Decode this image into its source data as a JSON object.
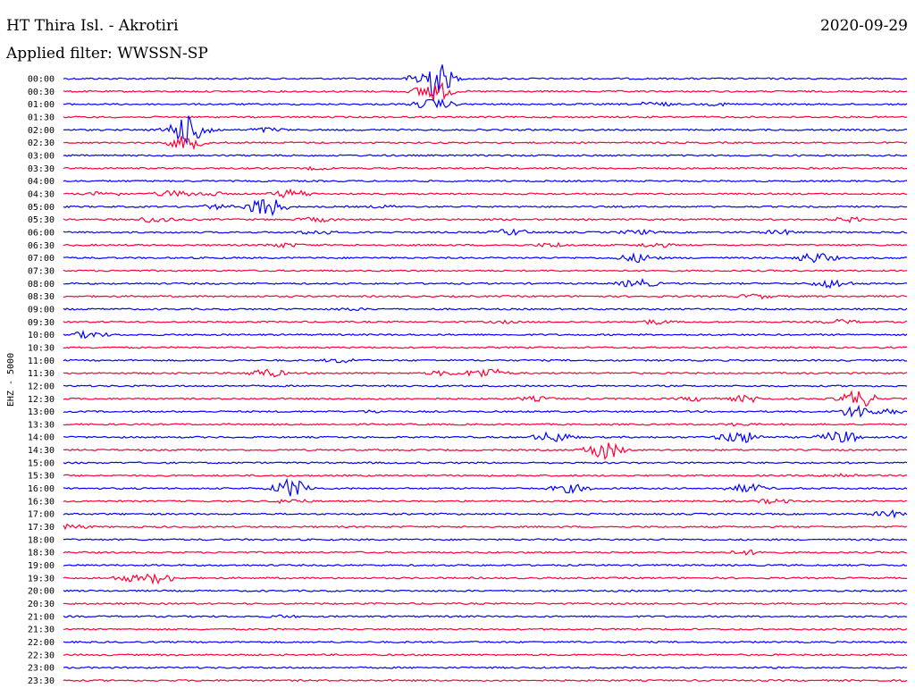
{
  "header": {
    "station": "HT Thira Isl. - Akrotiri",
    "date": "2020-09-29",
    "filter": "Applied filter: WWSSN-SP"
  },
  "chart_data": {
    "type": "line",
    "title": "HT Thira Isl. - Akrotiri",
    "channel_label": "EHZ - 5000",
    "colors": [
      "#0000ff",
      "#ff0033"
    ],
    "traces": [
      {
        "time": "00:00",
        "events": [
          {
            "t": 0.438,
            "a": 22
          }
        ]
      },
      {
        "time": "00:30",
        "events": [
          {
            "t": 0.438,
            "a": 12
          }
        ]
      },
      {
        "time": "01:00",
        "events": [
          {
            "t": 0.438,
            "a": 6
          },
          {
            "t": 0.7,
            "a": 3
          },
          {
            "t": 0.78,
            "a": 2
          }
        ]
      },
      {
        "time": "01:30",
        "events": []
      },
      {
        "time": "02:00",
        "events": [
          {
            "t": 0.145,
            "a": 16
          },
          {
            "t": 0.155,
            "a": 12
          },
          {
            "t": 0.24,
            "a": 3
          }
        ]
      },
      {
        "time": "02:30",
        "events": [
          {
            "t": 0.145,
            "a": 8
          }
        ]
      },
      {
        "time": "03:00",
        "events": []
      },
      {
        "time": "03:30",
        "events": [
          {
            "t": 0.3,
            "a": 2
          }
        ]
      },
      {
        "time": "04:00",
        "events": []
      },
      {
        "time": "04:30",
        "events": [
          {
            "t": 0.05,
            "a": 3
          },
          {
            "t": 0.13,
            "a": 4
          },
          {
            "t": 0.17,
            "a": 3
          },
          {
            "t": 0.27,
            "a": 5
          }
        ]
      },
      {
        "time": "05:00",
        "events": [
          {
            "t": 0.18,
            "a": 3
          },
          {
            "t": 0.24,
            "a": 12
          },
          {
            "t": 0.38,
            "a": 2
          }
        ]
      },
      {
        "time": "05:30",
        "events": [
          {
            "t": 0.11,
            "a": 4
          },
          {
            "t": 0.3,
            "a": 3
          },
          {
            "t": 0.93,
            "a": 3
          }
        ]
      },
      {
        "time": "06:00",
        "events": [
          {
            "t": 0.3,
            "a": 3
          },
          {
            "t": 0.53,
            "a": 4
          },
          {
            "t": 0.68,
            "a": 3
          },
          {
            "t": 0.85,
            "a": 3
          }
        ]
      },
      {
        "time": "06:30",
        "events": [
          {
            "t": 0.26,
            "a": 3
          },
          {
            "t": 0.58,
            "a": 3
          },
          {
            "t": 0.7,
            "a": 3
          }
        ]
      },
      {
        "time": "07:00",
        "events": [
          {
            "t": 0.68,
            "a": 5
          },
          {
            "t": 0.89,
            "a": 6
          }
        ]
      },
      {
        "time": "07:30",
        "events": []
      },
      {
        "time": "08:00",
        "events": [
          {
            "t": 0.68,
            "a": 5
          },
          {
            "t": 0.91,
            "a": 5
          }
        ]
      },
      {
        "time": "08:30",
        "events": [
          {
            "t": 0.82,
            "a": 3
          }
        ]
      },
      {
        "time": "09:00",
        "events": [
          {
            "t": 0.34,
            "a": 2
          }
        ]
      },
      {
        "time": "09:30",
        "events": [
          {
            "t": 0.52,
            "a": 2
          },
          {
            "t": 0.7,
            "a": 3
          },
          {
            "t": 0.92,
            "a": 3
          }
        ]
      },
      {
        "time": "10:00",
        "events": [
          {
            "t": 0.03,
            "a": 4
          }
        ]
      },
      {
        "time": "10:30",
        "events": []
      },
      {
        "time": "11:00",
        "events": [
          {
            "t": 0.33,
            "a": 3
          }
        ]
      },
      {
        "time": "11:30",
        "events": [
          {
            "t": 0.24,
            "a": 5
          },
          {
            "t": 0.45,
            "a": 3
          },
          {
            "t": 0.5,
            "a": 6
          }
        ]
      },
      {
        "time": "12:00",
        "events": []
      },
      {
        "time": "12:30",
        "events": [
          {
            "t": 0.56,
            "a": 3
          },
          {
            "t": 0.75,
            "a": 3
          },
          {
            "t": 0.81,
            "a": 4
          },
          {
            "t": 0.941,
            "a": 10
          }
        ]
      },
      {
        "time": "13:00",
        "events": [
          {
            "t": 0.37,
            "a": 2
          },
          {
            "t": 0.941,
            "a": 8
          },
          {
            "t": 0.98,
            "a": 3
          }
        ]
      },
      {
        "time": "13:30",
        "events": [
          {
            "t": 0.8,
            "a": 2
          }
        ]
      },
      {
        "time": "14:00",
        "events": [
          {
            "t": 0.58,
            "a": 6
          },
          {
            "t": 0.8,
            "a": 7
          },
          {
            "t": 0.92,
            "a": 7
          }
        ]
      },
      {
        "time": "14:30",
        "events": [
          {
            "t": 0.64,
            "a": 11
          }
        ]
      },
      {
        "time": "15:00",
        "events": []
      },
      {
        "time": "15:30",
        "events": [
          {
            "t": 0.92,
            "a": 3
          }
        ]
      },
      {
        "time": "16:00",
        "events": [
          {
            "t": 0.27,
            "a": 11
          },
          {
            "t": 0.6,
            "a": 5
          },
          {
            "t": 0.81,
            "a": 5
          }
        ]
      },
      {
        "time": "16:30",
        "events": [
          {
            "t": 0.27,
            "a": 3
          },
          {
            "t": 0.84,
            "a": 3
          }
        ]
      },
      {
        "time": "17:00",
        "events": [
          {
            "t": 0.98,
            "a": 4
          }
        ]
      },
      {
        "time": "17:30",
        "events": [
          {
            "t": 0.01,
            "a": 3
          }
        ]
      },
      {
        "time": "18:00",
        "events": []
      },
      {
        "time": "18:30",
        "events": [
          {
            "t": 0.81,
            "a": 3
          }
        ]
      },
      {
        "time": "19:00",
        "events": []
      },
      {
        "time": "19:30",
        "events": [
          {
            "t": 0.08,
            "a": 4
          },
          {
            "t": 0.11,
            "a": 6
          }
        ]
      },
      {
        "time": "20:00",
        "events": []
      },
      {
        "time": "20:30",
        "events": []
      },
      {
        "time": "21:00",
        "events": [
          {
            "t": 0.26,
            "a": 2
          }
        ]
      },
      {
        "time": "21:30",
        "events": []
      },
      {
        "time": "22:00",
        "events": []
      },
      {
        "time": "22:30",
        "events": []
      },
      {
        "time": "23:00",
        "events": []
      },
      {
        "time": "23:30",
        "events": []
      }
    ]
  }
}
